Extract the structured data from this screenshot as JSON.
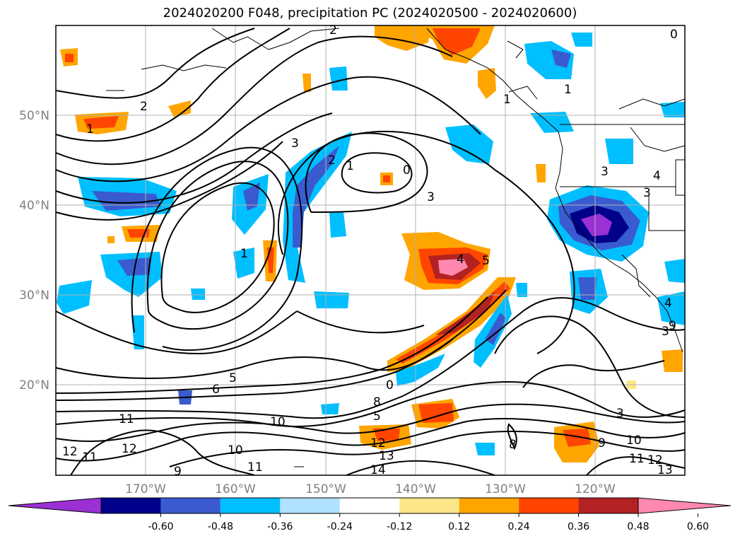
{
  "title": "2024020200 F048, precipitation PC (2024020500 - 2024020600)",
  "lat_labels": [
    "50°N",
    "40°N",
    "30°N",
    "20°N"
  ],
  "lon_labels": [
    "170°W",
    "160°W",
    "150°W",
    "140°W",
    "130°W",
    "120°W"
  ],
  "colorbar": {
    "colors": [
      "#9b30d4",
      "#00008b",
      "#3a5bd0",
      "#00bfff",
      "#b0e2ff",
      "#ffffff",
      "#fde68a",
      "#ffa500",
      "#ff4500",
      "#b22222",
      "#ff88b0"
    ],
    "tick_labels": [
      "-0.60",
      "-0.48",
      "-0.36",
      "-0.24",
      "-0.12",
      "0.12",
      "0.24",
      "0.36",
      "0.48",
      "0.60"
    ]
  },
  "contour_labels": [
    "2",
    "1",
    "3",
    "2",
    "1",
    "0",
    "3",
    "1",
    "3",
    "4",
    "3",
    "4",
    "5",
    "1",
    "6",
    "5",
    "0",
    "8",
    "5",
    "11",
    "10",
    "10",
    "12",
    "11",
    "13",
    "12",
    "12",
    "14",
    "11",
    "9",
    "8",
    "3",
    "9",
    "10",
    "12",
    "13",
    "11",
    "4",
    "3",
    "0",
    "2",
    "9",
    "1"
  ],
  "colors": {
    "contour": "#000000",
    "coast": "#000000",
    "grid": "#b0b0b0",
    "frame": "#000000"
  }
}
